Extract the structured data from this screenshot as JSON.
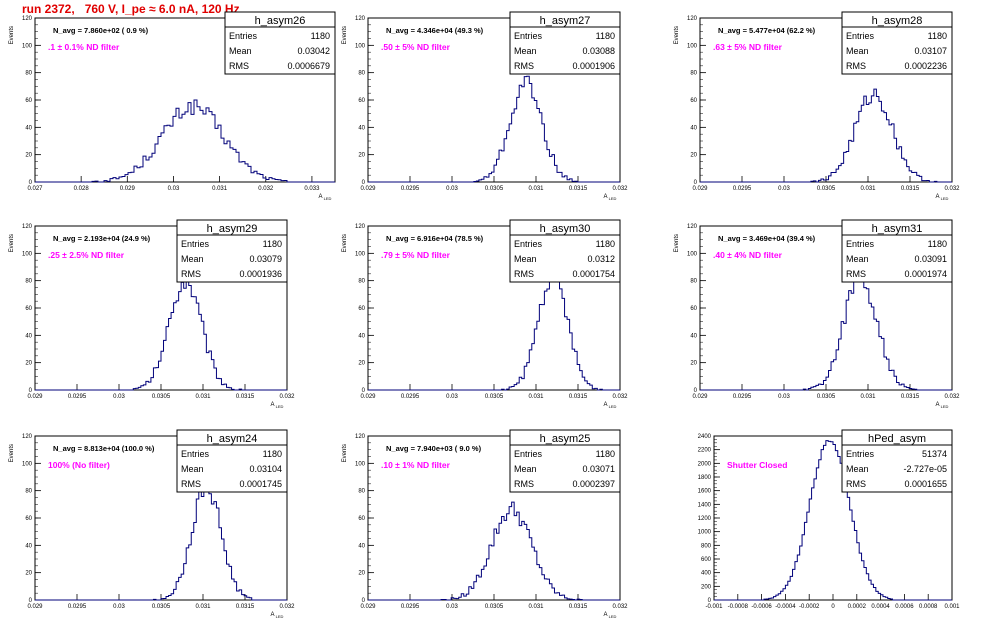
{
  "page_title": "run 2372,   760 V, I_pe ≈ 6.0 nA, 120 Hz",
  "colors": {
    "histogram": "#00007a",
    "filter_label": "#ff00ff",
    "title": "#e00000",
    "axis": "#000000"
  },
  "stats_labels": {
    "entries": "Entries",
    "mean": "Mean",
    "rms": "RMS"
  },
  "chart_data": [
    {
      "type": "bar",
      "name": "h_asym26",
      "title": "N_avg = 7.860e+02 ( 0.9 %)",
      "filter_label": ".1 ± 0.1% ND filter",
      "stats": {
        "entries": "1180",
        "mean": "0.03042",
        "rms": "0.0006679"
      },
      "xlabel": "A_LED",
      "ylabel": "Events",
      "xlim": [
        0.027,
        0.0335
      ],
      "ylim": [
        0,
        120
      ],
      "xticks": [
        0.027,
        0.028,
        0.029,
        0.03,
        0.031,
        0.032,
        0.033
      ],
      "xtick_labels": [
        "0.027",
        "0.028",
        "0.029",
        "0.03",
        "0.031",
        "0.032",
        "0.033"
      ],
      "yticks": [
        0,
        20,
        40,
        60,
        80,
        100,
        120
      ],
      "mean": 0.03042,
      "rms": 0.0006679,
      "peak": 55
    },
    {
      "type": "bar",
      "name": "h_asym27",
      "title": "N_avg = 4.346e+04 (49.3 %)",
      "filter_label": ".50 ± 5% ND filter",
      "stats": {
        "entries": "1180",
        "mean": "0.03088",
        "rms": "0.0001906"
      },
      "xlabel": "A_LED",
      "ylabel": "Events",
      "xlim": [
        0.029,
        0.032
      ],
      "ylim": [
        0,
        120
      ],
      "xticks": [
        0.029,
        0.0295,
        0.03,
        0.0305,
        0.031,
        0.0315,
        0.032
      ],
      "xtick_labels": [
        "0.029",
        "0.0295",
        "0.03",
        "0.0305",
        "0.031",
        "0.0315",
        "0.032"
      ],
      "yticks": [
        0,
        20,
        40,
        60,
        80,
        100,
        120
      ],
      "mean": 0.03088,
      "rms": 0.0001906,
      "peak": 72
    },
    {
      "type": "bar",
      "name": "h_asym28",
      "title": "N_avg = 5.477e+04 (62.2 %)",
      "filter_label": ".63 ± 5% ND filter",
      "stats": {
        "entries": "1180",
        "mean": "0.03107",
        "rms": "0.0002236"
      },
      "xlabel": "A_LED",
      "ylabel": "Events",
      "xlim": [
        0.029,
        0.032
      ],
      "ylim": [
        0,
        120
      ],
      "xticks": [
        0.029,
        0.0295,
        0.03,
        0.0305,
        0.031,
        0.0315,
        0.032
      ],
      "xtick_labels": [
        "0.029",
        "0.0295",
        "0.03",
        "0.0305",
        "0.031",
        "0.0315",
        "0.032"
      ],
      "yticks": [
        0,
        20,
        40,
        60,
        80,
        100,
        120
      ],
      "mean": 0.03107,
      "rms": 0.0002236,
      "peak": 64
    },
    {
      "type": "bar",
      "name": "h_asym29",
      "title": "N_avg = 2.193e+04 (24.9 %)",
      "filter_label": ".25 ± 2.5% ND filter",
      "stats": {
        "entries": "1180",
        "mean": "0.03079",
        "rms": "0.0001936"
      },
      "xlabel": "A_LED",
      "ylabel": "Events",
      "xlim": [
        0.029,
        0.032
      ],
      "ylim": [
        0,
        120
      ],
      "xticks": [
        0.029,
        0.0295,
        0.03,
        0.0305,
        0.031,
        0.0315,
        0.032
      ],
      "xtick_labels": [
        "0.029",
        "0.0295",
        "0.03",
        "0.0305",
        "0.031",
        "0.0315",
        "0.032"
      ],
      "yticks": [
        0,
        20,
        40,
        60,
        80,
        100,
        120
      ],
      "mean": 0.03079,
      "rms": 0.0001936,
      "peak": 80
    },
    {
      "type": "bar",
      "name": "h_asym30",
      "title": "N_avg = 6.916e+04 (78.5 %)",
      "filter_label": ".79 ± 5% ND filter",
      "stats": {
        "entries": "1180",
        "mean": "0.0312",
        "rms": "0.0001754"
      },
      "xlabel": "A_LED",
      "ylabel": "Events",
      "xlim": [
        0.029,
        0.032
      ],
      "ylim": [
        0,
        120
      ],
      "xticks": [
        0.029,
        0.0295,
        0.03,
        0.0305,
        0.031,
        0.0315,
        0.032
      ],
      "xtick_labels": [
        "0.029",
        "0.0295",
        "0.03",
        "0.0305",
        "0.031",
        "0.0315",
        "0.032"
      ],
      "yticks": [
        0,
        20,
        40,
        60,
        80,
        100,
        120
      ],
      "mean": 0.0312,
      "rms": 0.0001754,
      "peak": 85
    },
    {
      "type": "bar",
      "name": "h_asym31",
      "title": "N_avg = 3.469e+04 (39.4 %)",
      "filter_label": ".40 ± 4% ND filter",
      "stats": {
        "entries": "1180",
        "mean": "0.03091",
        "rms": "0.0001974"
      },
      "xlabel": "A_LED",
      "ylabel": "Events",
      "xlim": [
        0.029,
        0.032
      ],
      "ylim": [
        0,
        120
      ],
      "xticks": [
        0.029,
        0.0295,
        0.03,
        0.0305,
        0.031,
        0.0315,
        0.032
      ],
      "xtick_labels": [
        "0.029",
        "0.0295",
        "0.03",
        "0.0305",
        "0.031",
        "0.0315",
        "0.032"
      ],
      "yticks": [
        0,
        20,
        40,
        60,
        80,
        100,
        120
      ],
      "mean": 0.03091,
      "rms": 0.0001974,
      "peak": 83
    },
    {
      "type": "bar",
      "name": "h_asym24",
      "title": "N_avg = 8.813e+04 (100.0 %)",
      "filter_label": "100% (No filter)",
      "stats": {
        "entries": "1180",
        "mean": "0.03104",
        "rms": "0.0001745"
      },
      "xlabel": "A_LED",
      "ylabel": "Events",
      "xlim": [
        0.029,
        0.032
      ],
      "ylim": [
        0,
        120
      ],
      "xticks": [
        0.029,
        0.0295,
        0.03,
        0.0305,
        0.031,
        0.0315,
        0.032
      ],
      "xtick_labels": [
        "0.029",
        "0.0295",
        "0.03",
        "0.0305",
        "0.031",
        "0.0315",
        "0.032"
      ],
      "yticks": [
        0,
        20,
        40,
        60,
        80,
        100,
        120
      ],
      "mean": 0.03104,
      "rms": 0.0001745,
      "peak": 84
    },
    {
      "type": "bar",
      "name": "h_asym25",
      "title": "N_avg = 7.940e+03 ( 9.0 %)",
      "filter_label": ".10 ± 1% ND filter",
      "stats": {
        "entries": "1180",
        "mean": "0.03071",
        "rms": "0.0002397"
      },
      "xlabel": "A_LED",
      "ylabel": "Events",
      "xlim": [
        0.029,
        0.032
      ],
      "ylim": [
        0,
        120
      ],
      "xticks": [
        0.029,
        0.0295,
        0.03,
        0.0305,
        0.031,
        0.0315,
        0.032
      ],
      "xtick_labels": [
        "0.029",
        "0.0295",
        "0.03",
        "0.0305",
        "0.031",
        "0.0315",
        "0.032"
      ],
      "yticks": [
        0,
        20,
        40,
        60,
        80,
        100,
        120
      ],
      "mean": 0.03071,
      "rms": 0.0002397,
      "peak": 66
    },
    {
      "type": "bar",
      "name": "hPed_asym",
      "title": "",
      "filter_label": "Shutter Closed",
      "stats": {
        "entries": "51374",
        "mean": "-2.727e-05",
        "rms": "0.0001655"
      },
      "xlabel": "",
      "ylabel": "",
      "xlim": [
        -0.001,
        0.001
      ],
      "ylim": [
        0,
        2400
      ],
      "xticks": [
        -0.001,
        -0.0008,
        -0.0006,
        -0.0004,
        -0.0002,
        0,
        0.0002,
        0.0004,
        0.0006,
        0.0008,
        0.001
      ],
      "xtick_labels": [
        "-0.001",
        "-0.0008",
        "-0.0006",
        "-0.0004",
        "-0.0002",
        "0",
        "0.0002",
        "0.0004",
        "0.0006",
        "0.0008",
        "0.001"
      ],
      "yticks": [
        0,
        200,
        400,
        600,
        800,
        1000,
        1200,
        1400,
        1600,
        1800,
        2000,
        2200,
        2400
      ],
      "mean": -2.727e-05,
      "rms": 0.0001655,
      "peak": 2350
    }
  ]
}
